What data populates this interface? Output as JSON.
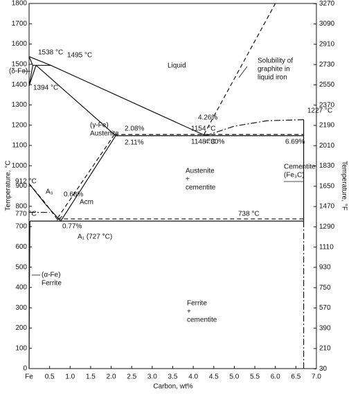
{
  "chart_data": {
    "type": "line",
    "x_label": "Carbon, wt%",
    "y_label": "Temperature, °C",
    "y2_label": "Temperature, °F",
    "xlim": [
      0,
      7.0
    ],
    "ylim": [
      0,
      1800
    ],
    "y2lim": [
      32,
      3272
    ],
    "xticks": [
      {
        "value": 0,
        "label": "Fe"
      },
      0.5,
      {
        "value": 1,
        "label": "1.0"
      },
      1.5,
      {
        "value": 2,
        "label": "2.0"
      },
      2.5,
      {
        "value": 3,
        "label": "3.0"
      },
      3.5,
      {
        "value": 4,
        "label": "4.0"
      },
      4.5,
      {
        "value": 5,
        "label": "5.0"
      },
      5.5,
      {
        "value": 6,
        "label": "6.0"
      },
      6.5,
      {
        "value": 7,
        "label": "7.0"
      }
    ],
    "yticks": [
      0,
      100,
      200,
      300,
      400,
      500,
      600,
      700,
      800,
      900,
      1000,
      1100,
      1200,
      1300,
      1400,
      1500,
      1600,
      1700,
      1800
    ],
    "y2ticks": [
      30,
      210,
      390,
      570,
      750,
      930,
      1110,
      1290,
      1470,
      1650,
      1830,
      2010,
      2190,
      2370,
      2550,
      2730,
      2910,
      3090,
      3270
    ],
    "grid": false,
    "color": "#111",
    "series": [
      {
        "style": "solid",
        "x": [
          0,
          0.53,
          4.3
        ],
        "values": [
          1538,
          1495,
          1148
        ]
      },
      {
        "style": "solid",
        "x": [
          0,
          0.09,
          0.53
        ],
        "values": [
          1538,
          1495,
          1495
        ]
      },
      {
        "style": "solid",
        "x": [
          0,
          0.09
        ],
        "values": [
          1394,
          1495
        ]
      },
      {
        "style": "solid",
        "x": [
          0,
          0.17
        ],
        "values": [
          1394,
          1495
        ]
      },
      {
        "style": "solid",
        "x": [
          0.17,
          2.11
        ],
        "values": [
          1495,
          1148
        ]
      },
      {
        "style": "solid",
        "x": [
          2.11,
          6.69
        ],
        "values": [
          1148,
          1148
        ]
      },
      {
        "style": "dashed",
        "x": [
          2.08,
          6.69
        ],
        "values": [
          1154,
          1154
        ]
      },
      {
        "style": "solid",
        "x": [
          2.11,
          0.77
        ],
        "values": [
          1148,
          727
        ]
      },
      {
        "style": "dashed",
        "x": [
          2.08,
          0.68
        ],
        "values": [
          1154,
          738
        ]
      },
      {
        "style": "solid",
        "x": [
          0,
          0.4,
          0.77
        ],
        "values": [
          912,
          810,
          727
        ]
      },
      {
        "style": "dashed",
        "x": [
          0,
          0.4,
          0.68
        ],
        "values": [
          912,
          815,
          738
        ]
      },
      {
        "style": "dashdot",
        "x": [
          0,
          0.5
        ],
        "values": [
          770,
          770
        ]
      },
      {
        "style": "solid",
        "x": [
          0.02,
          6.69
        ],
        "values": [
          727,
          727
        ]
      },
      {
        "style": "dashed",
        "x": [
          0.68,
          6.69
        ],
        "values": [
          738,
          738
        ]
      },
      {
        "style": "solid",
        "x": [
          0.02,
          0.008,
          0
        ],
        "values": [
          727,
          400,
          0
        ]
      },
      {
        "style": "dashdot",
        "x": [
          4.3,
          5.0,
          5.8,
          6.69
        ],
        "values": [
          1148,
          1195,
          1222,
          1227
        ]
      },
      {
        "style": "dashed",
        "x": [
          4.26,
          6.0
        ],
        "values": [
          1154,
          1800
        ]
      },
      {
        "style": "solid",
        "x": [
          6.69,
          6.69
        ],
        "values": [
          1227,
          727
        ]
      },
      {
        "style": "dashdot",
        "x": [
          6.69,
          6.69
        ],
        "values": [
          727,
          0
        ]
      }
    ],
    "annotations": [
      "1538 °C",
      "1495 °C",
      "(δ-Fe)",
      "1394 °C",
      "Liquid",
      "Solubility of",
      "graphite in",
      "liquid iron",
      "1227 °C",
      "4.26%",
      "2.08%",
      "1154 °C",
      "(γ-Fe)",
      "Austenite",
      "2.11%",
      "1148 °C",
      "4.30%",
      "6.69%",
      "Austenite",
      "+",
      "cementite",
      "Cementite",
      "(Fe₃C)",
      "912 °C",
      "A₃",
      "0.68%",
      "Acm",
      "770 °C",
      "738 °C",
      "0.77%",
      "A₁ (727 °C)",
      "(α-Fe)",
      "Ferrite",
      "Ferrite",
      "+",
      "cementite"
    ]
  }
}
